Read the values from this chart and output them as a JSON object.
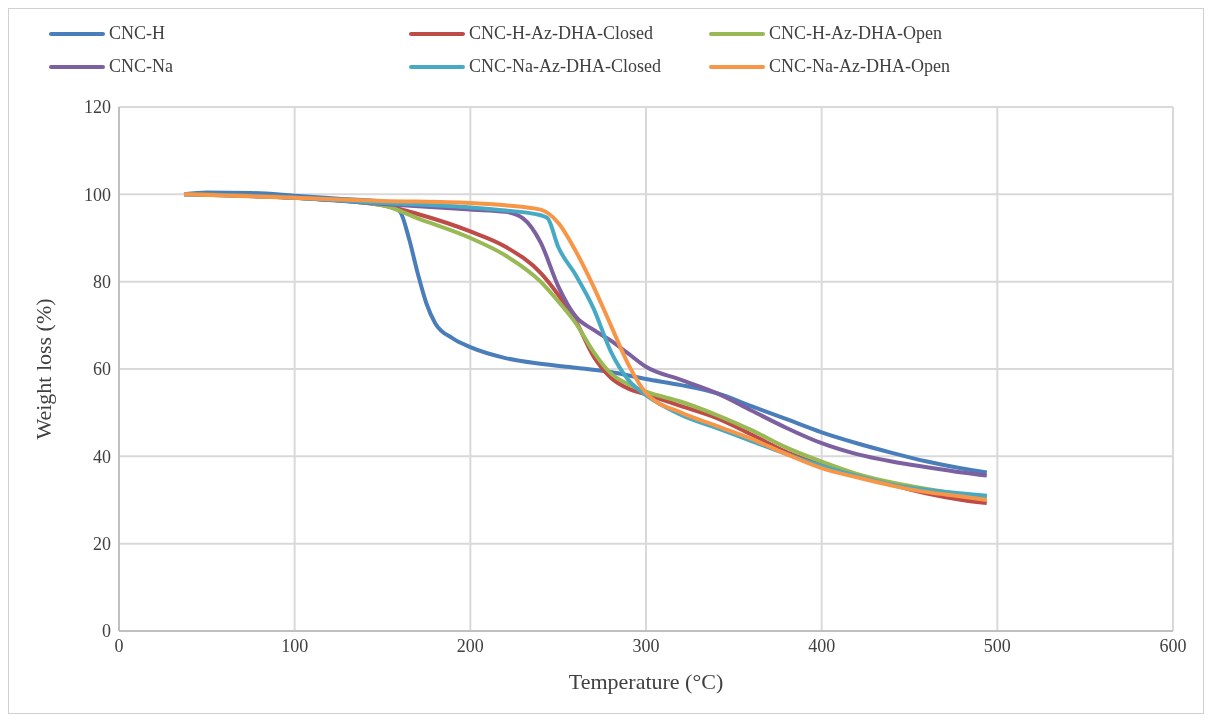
{
  "chart_data": {
    "type": "line",
    "xlabel": "Temperature (°C)",
    "ylabel": "Weight loss (%)",
    "xlim": [
      0,
      600
    ],
    "xticks": [
      0,
      100,
      200,
      300,
      400,
      500,
      600
    ],
    "ylim": [
      0,
      120
    ],
    "yticks": [
      0,
      20,
      40,
      60,
      80,
      100,
      120
    ],
    "grid": true,
    "legend": "top",
    "marker": "none",
    "line_style": "solid",
    "series": [
      {
        "name": "CNC-H",
        "color": "#4a7ebb",
        "x": [
          37,
          50,
          75,
          100,
          125,
          150,
          160,
          165,
          170,
          175,
          180,
          190,
          200,
          220,
          240,
          260,
          280,
          300,
          320,
          340,
          360,
          380,
          400,
          420,
          440,
          460,
          480,
          494
        ],
        "values": [
          100,
          100.4,
          100.3,
          99.7,
          99,
          98.3,
          96,
          90,
          82,
          75,
          70.5,
          67,
          65,
          62.5,
          61.2,
          60.3,
          59.3,
          57.7,
          56.3,
          54.5,
          51.5,
          48.5,
          45.5,
          43,
          40.8,
          38.8,
          37.2,
          36.3
        ]
      },
      {
        "name": "CNC-H-Az-DHA-Closed",
        "color": "#be4b48",
        "x": [
          37,
          100,
          150,
          170,
          200,
          220,
          240,
          250,
          260,
          270,
          280,
          290,
          300,
          320,
          340,
          360,
          380,
          400,
          420,
          440,
          460,
          480,
          494
        ],
        "values": [
          100,
          99.2,
          97.5,
          95.5,
          91.5,
          88,
          82,
          77,
          71,
          63,
          58,
          55.5,
          54.2,
          51.5,
          48.8,
          45,
          41,
          38,
          35.5,
          33.5,
          31.5,
          30,
          29.3
        ]
      },
      {
        "name": "CNC-H-Az-DHA-Open",
        "color": "#98b954",
        "x": [
          37,
          100,
          150,
          170,
          200,
          220,
          240,
          250,
          260,
          270,
          280,
          290,
          300,
          320,
          340,
          360,
          380,
          400,
          420,
          440,
          460,
          480,
          494
        ],
        "values": [
          100,
          99.2,
          97.5,
          94.5,
          90,
          86,
          80,
          75.5,
          70.5,
          64,
          59,
          56.5,
          54.8,
          52.5,
          49.5,
          46,
          42,
          38.8,
          36,
          34,
          32.5,
          31.3,
          30.8
        ]
      },
      {
        "name": "CNC-Na",
        "color": "#7d60a0",
        "x": [
          37,
          100,
          150,
          200,
          220,
          230,
          240,
          250,
          260,
          270,
          280,
          290,
          300,
          320,
          340,
          360,
          380,
          400,
          420,
          440,
          460,
          480,
          494
        ],
        "values": [
          100,
          99.2,
          97.8,
          96.5,
          96,
          94.5,
          89,
          79,
          72,
          69,
          66.5,
          63.5,
          60.5,
          57.5,
          54.5,
          50.5,
          46.5,
          43,
          40.5,
          38.8,
          37.5,
          36.3,
          35.6
        ]
      },
      {
        "name": "CNC-Na-Az-DHA-Closed",
        "color": "#46aac5",
        "x": [
          37,
          100,
          150,
          200,
          220,
          240,
          244,
          250,
          260,
          270,
          280,
          290,
          300,
          320,
          340,
          360,
          380,
          400,
          420,
          440,
          460,
          480,
          494
        ],
        "values": [
          100,
          99.2,
          98,
          97,
          96.3,
          95.2,
          94.5,
          88,
          81.5,
          74,
          64,
          57.5,
          54,
          49.5,
          46.5,
          43.5,
          40.5,
          37.8,
          35.5,
          33.5,
          32.3,
          31.5,
          31
        ]
      },
      {
        "name": "CNC-Na-Az-DHA-Open",
        "color": "#f79646",
        "x": [
          37,
          100,
          150,
          200,
          220,
          240,
          250,
          260,
          270,
          280,
          290,
          300,
          320,
          340,
          360,
          380,
          400,
          420,
          440,
          460,
          480,
          494
        ],
        "values": [
          100,
          99.2,
          98.5,
          98,
          97.5,
          96.5,
          93.5,
          87,
          79,
          70,
          61,
          54.5,
          50,
          47,
          44,
          40.5,
          37.3,
          35.2,
          33.3,
          31.8,
          30.8,
          30
        ]
      }
    ]
  }
}
